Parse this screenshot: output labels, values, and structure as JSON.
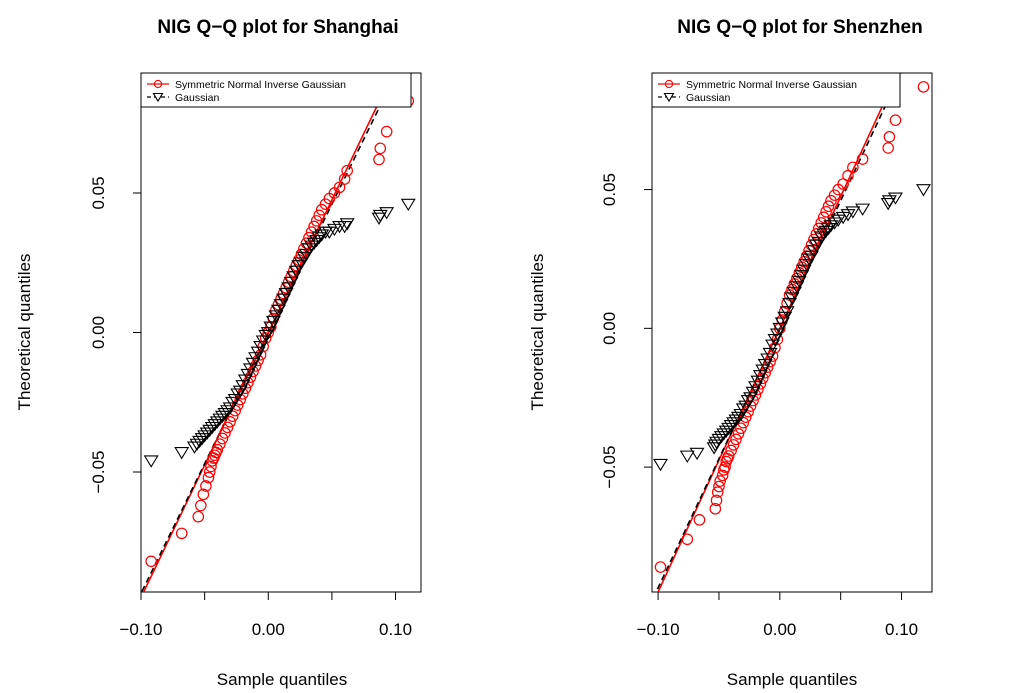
{
  "chart_data": [
    {
      "type": "scatter",
      "title": "NIG Q−Q plot for Shanghai",
      "xlabel": "Sample quantiles",
      "ylabel": "Theoretical quantiles",
      "xlim": [
        -0.1,
        0.12
      ],
      "ylim": [
        -0.093,
        0.093
      ],
      "xticks": [
        {
          "v": -0.1,
          "label": "−0.10"
        },
        {
          "v": 0.0,
          "label": "0.00"
        },
        {
          "v": 0.1,
          "label": "0.10"
        }
      ],
      "yticks": [
        {
          "v": -0.05,
          "label": "−0.05"
        },
        {
          "v": 0.0,
          "label": "0.00"
        },
        {
          "v": 0.05,
          "label": "0.05"
        }
      ],
      "legend": {
        "position": "top-left",
        "entries": [
          "Symmetric Normal Inverse Gaussian",
          "Gaussian"
        ]
      },
      "colors": {
        "nig": "#ff0000",
        "gaussian": "#000000"
      },
      "series": [
        {
          "name": "Symmetric Normal Inverse Gaussian",
          "marker": "circle",
          "color": "#ff0000",
          "x": [
            -0.092,
            -0.068,
            -0.055,
            -0.053,
            -0.051,
            -0.049,
            -0.047,
            -0.046,
            -0.045,
            -0.044,
            -0.043,
            -0.042,
            -0.041,
            -0.04,
            -0.038,
            -0.036,
            -0.034,
            -0.032,
            -0.03,
            -0.028,
            -0.026,
            -0.024,
            -0.022,
            -0.02,
            -0.018,
            -0.016,
            -0.014,
            -0.012,
            -0.01,
            -0.008,
            -0.006,
            -0.004,
            -0.002,
            0.0,
            0.002,
            0.004,
            0.006,
            0.008,
            0.01,
            0.012,
            0.014,
            0.016,
            0.018,
            0.02,
            0.022,
            0.024,
            0.026,
            0.028,
            0.03,
            0.032,
            0.034,
            0.036,
            0.038,
            0.04,
            0.042,
            0.045,
            0.048,
            0.052,
            0.056,
            0.06,
            0.062,
            0.087,
            0.088,
            0.093,
            0.11
          ],
          "y": [
            -0.082,
            -0.072,
            -0.066,
            -0.062,
            -0.058,
            -0.055,
            -0.052,
            -0.05,
            -0.048,
            -0.046,
            -0.045,
            -0.044,
            -0.043,
            -0.042,
            -0.04,
            -0.038,
            -0.036,
            -0.034,
            -0.032,
            -0.03,
            -0.028,
            -0.026,
            -0.024,
            -0.022,
            -0.02,
            -0.018,
            -0.016,
            -0.014,
            -0.012,
            -0.01,
            -0.008,
            -0.005,
            -0.002,
            0.0,
            0.002,
            0.005,
            0.008,
            0.01,
            0.012,
            0.014,
            0.016,
            0.018,
            0.02,
            0.022,
            0.024,
            0.026,
            0.028,
            0.03,
            0.032,
            0.034,
            0.036,
            0.038,
            0.04,
            0.042,
            0.044,
            0.046,
            0.048,
            0.05,
            0.052,
            0.055,
            0.058,
            0.062,
            0.066,
            0.072,
            0.083
          ]
        },
        {
          "name": "Gaussian",
          "marker": "triangle-down",
          "color": "#000000",
          "x": [
            -0.092,
            -0.068,
            -0.058,
            -0.056,
            -0.054,
            -0.052,
            -0.05,
            -0.048,
            -0.046,
            -0.044,
            -0.042,
            -0.04,
            -0.038,
            -0.036,
            -0.034,
            -0.032,
            -0.03,
            -0.028,
            -0.026,
            -0.024,
            -0.022,
            -0.02,
            -0.018,
            -0.016,
            -0.014,
            -0.012,
            -0.01,
            -0.008,
            -0.006,
            -0.004,
            -0.002,
            0.0,
            0.002,
            0.004,
            0.006,
            0.008,
            0.01,
            0.012,
            0.014,
            0.016,
            0.018,
            0.02,
            0.022,
            0.024,
            0.026,
            0.028,
            0.03,
            0.032,
            0.034,
            0.036,
            0.038,
            0.04,
            0.042,
            0.045,
            0.048,
            0.052,
            0.056,
            0.06,
            0.062,
            0.087,
            0.088,
            0.093,
            0.11
          ],
          "y": [
            -0.046,
            -0.043,
            -0.041,
            -0.04,
            -0.039,
            -0.038,
            -0.037,
            -0.036,
            -0.035,
            -0.034,
            -0.033,
            -0.032,
            -0.031,
            -0.03,
            -0.029,
            -0.028,
            -0.027,
            -0.025,
            -0.024,
            -0.022,
            -0.021,
            -0.019,
            -0.017,
            -0.015,
            -0.013,
            -0.011,
            -0.009,
            -0.007,
            -0.005,
            -0.003,
            -0.001,
            0.0,
            0.002,
            0.004,
            0.006,
            0.008,
            0.01,
            0.012,
            0.014,
            0.016,
            0.018,
            0.02,
            0.022,
            0.024,
            0.025,
            0.027,
            0.028,
            0.03,
            0.031,
            0.032,
            0.033,
            0.034,
            0.035,
            0.036,
            0.036,
            0.037,
            0.038,
            0.038,
            0.039,
            0.041,
            0.042,
            0.043,
            0.046
          ]
        }
      ],
      "reference_lines": [
        {
          "series": "Symmetric Normal Inverse Gaussian",
          "style": "solid",
          "color": "#ff0000",
          "slope": 0.95,
          "intercept": 0.0
        },
        {
          "series": "Gaussian",
          "style": "dashed",
          "color": "#000000",
          "slope": 0.93,
          "intercept": -0.0005
        }
      ]
    },
    {
      "type": "scatter",
      "title": "NIG Q−Q plot for Shenzhen",
      "xlabel": "Sample quantiles",
      "ylabel": "Theoretical quantiles",
      "xlim": [
        -0.105,
        0.125
      ],
      "ylim": [
        -0.095,
        0.092
      ],
      "xticks": [
        {
          "v": -0.1,
          "label": "−0.10"
        },
        {
          "v": 0.0,
          "label": "0.00"
        },
        {
          "v": 0.1,
          "label": "0.10"
        }
      ],
      "yticks": [
        {
          "v": -0.05,
          "label": "−0.05"
        },
        {
          "v": 0.0,
          "label": "0.00"
        },
        {
          "v": 0.05,
          "label": "0.05"
        }
      ],
      "legend": {
        "position": "top-left",
        "entries": [
          "Symmetric Normal Inverse Gaussian",
          "Gaussian"
        ]
      },
      "colors": {
        "nig": "#ff0000",
        "gaussian": "#000000"
      },
      "series": [
        {
          "name": "Symmetric Normal Inverse Gaussian",
          "marker": "circle",
          "color": "#ff0000",
          "x": [
            -0.098,
            -0.076,
            -0.066,
            -0.053,
            -0.052,
            -0.051,
            -0.05,
            -0.049,
            -0.047,
            -0.046,
            -0.045,
            -0.044,
            -0.043,
            -0.042,
            -0.04,
            -0.038,
            -0.036,
            -0.034,
            -0.032,
            -0.03,
            -0.028,
            -0.026,
            -0.024,
            -0.022,
            -0.02,
            -0.018,
            -0.016,
            -0.014,
            -0.012,
            -0.01,
            -0.008,
            -0.006,
            -0.004,
            -0.002,
            0.0,
            0.002,
            0.004,
            0.006,
            0.008,
            0.01,
            0.012,
            0.014,
            0.016,
            0.018,
            0.02,
            0.022,
            0.024,
            0.026,
            0.028,
            0.03,
            0.032,
            0.034,
            0.036,
            0.038,
            0.04,
            0.042,
            0.045,
            0.048,
            0.052,
            0.056,
            0.06,
            0.068,
            0.089,
            0.09,
            0.095,
            0.118
          ],
          "y": [
            -0.086,
            -0.076,
            -0.069,
            -0.065,
            -0.062,
            -0.059,
            -0.057,
            -0.055,
            -0.053,
            -0.051,
            -0.05,
            -0.048,
            -0.047,
            -0.046,
            -0.044,
            -0.042,
            -0.04,
            -0.038,
            -0.036,
            -0.034,
            -0.032,
            -0.03,
            -0.028,
            -0.026,
            -0.024,
            -0.022,
            -0.02,
            -0.018,
            -0.016,
            -0.014,
            -0.012,
            -0.01,
            -0.007,
            -0.004,
            0.0,
            0.003,
            0.006,
            0.009,
            0.012,
            0.014,
            0.016,
            0.018,
            0.02,
            0.022,
            0.024,
            0.026,
            0.028,
            0.03,
            0.032,
            0.034,
            0.036,
            0.038,
            0.04,
            0.042,
            0.044,
            0.046,
            0.048,
            0.05,
            0.052,
            0.055,
            0.058,
            0.061,
            0.065,
            0.069,
            0.075,
            0.087
          ]
        },
        {
          "name": "Gaussian",
          "marker": "triangle-down",
          "color": "#000000",
          "x": [
            -0.098,
            -0.076,
            -0.068,
            -0.054,
            -0.053,
            -0.052,
            -0.05,
            -0.048,
            -0.046,
            -0.044,
            -0.042,
            -0.04,
            -0.038,
            -0.036,
            -0.034,
            -0.032,
            -0.03,
            -0.028,
            -0.026,
            -0.024,
            -0.022,
            -0.02,
            -0.018,
            -0.016,
            -0.014,
            -0.012,
            -0.01,
            -0.008,
            -0.006,
            -0.004,
            -0.002,
            0.0,
            0.002,
            0.004,
            0.006,
            0.008,
            0.01,
            0.012,
            0.014,
            0.016,
            0.018,
            0.02,
            0.022,
            0.024,
            0.026,
            0.028,
            0.03,
            0.032,
            0.034,
            0.036,
            0.038,
            0.04,
            0.042,
            0.045,
            0.048,
            0.052,
            0.056,
            0.06,
            0.068,
            0.089,
            0.09,
            0.095,
            0.118
          ],
          "y": [
            -0.049,
            -0.046,
            -0.045,
            -0.043,
            -0.042,
            -0.041,
            -0.04,
            -0.039,
            -0.038,
            -0.037,
            -0.036,
            -0.035,
            -0.034,
            -0.033,
            -0.032,
            -0.031,
            -0.029,
            -0.028,
            -0.026,
            -0.025,
            -0.023,
            -0.021,
            -0.019,
            -0.017,
            -0.015,
            -0.013,
            -0.011,
            -0.009,
            -0.006,
            -0.004,
            -0.002,
            0.0,
            0.002,
            0.004,
            0.006,
            0.009,
            0.011,
            0.013,
            0.015,
            0.017,
            0.019,
            0.021,
            0.023,
            0.025,
            0.026,
            0.028,
            0.03,
            0.031,
            0.033,
            0.034,
            0.035,
            0.036,
            0.037,
            0.038,
            0.039,
            0.04,
            0.041,
            0.042,
            0.043,
            0.045,
            0.046,
            0.047,
            0.05
          ]
        }
      ],
      "reference_lines": [
        {
          "series": "Symmetric Normal Inverse Gaussian",
          "style": "solid",
          "color": "#ff0000",
          "slope": 0.95,
          "intercept": 0.0
        },
        {
          "series": "Gaussian",
          "style": "dashed",
          "color": "#000000",
          "slope": 0.93,
          "intercept": -0.0005
        }
      ]
    }
  ]
}
